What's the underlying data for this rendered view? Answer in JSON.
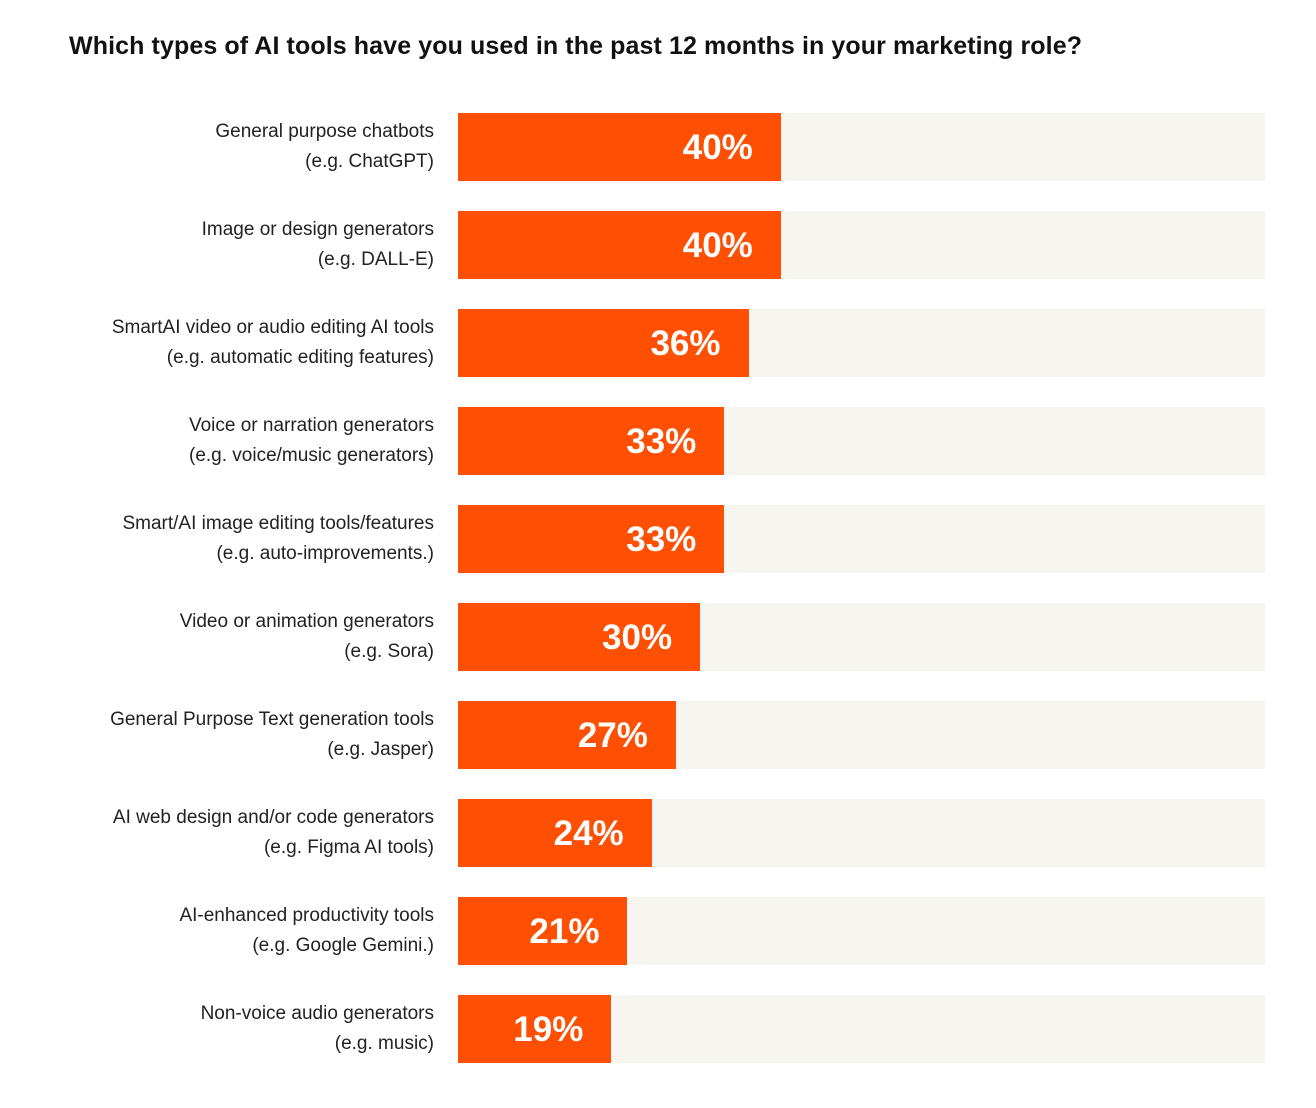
{
  "colors": {
    "bar": "#fe4f02",
    "track": "#f7f5ef",
    "value_text": "#ffffff",
    "label_text": "#222222",
    "title_text": "#111111"
  },
  "chart_data": {
    "type": "bar",
    "orientation": "horizontal",
    "title": "Which types of AI tools have you used in the past 12 months in your marketing role?",
    "xlabel": "",
    "ylabel": "",
    "xlim": [
      0,
      100
    ],
    "grid": false,
    "legend": null,
    "categories": [
      "General purpose chatbots (e.g. ChatGPT)",
      "Image or design generators (e.g. DALL-E)",
      "SmartAI video or audio editing AI tools (e.g. automatic editing features)",
      "Voice or narration generators (e.g. voice/music generators)",
      "Smart/AI image editing tools/features (e.g. auto-improvements.)",
      "Video or animation generators (e.g. Sora)",
      "General Purpose Text generation tools (e.g. Jasper)",
      "AI web design and/or code generators (e.g. Figma AI tools)",
      "AI-enhanced productivity tools (e.g. Google Gemini.)",
      "Non-voice audio generators (e.g. music)"
    ],
    "values": [
      40,
      40,
      36,
      33,
      33,
      30,
      27,
      24,
      21,
      19
    ],
    "unit": "%"
  },
  "rows": [
    {
      "line1": "General purpose chatbots",
      "line2": "(e.g. ChatGPT)",
      "value": 40,
      "label": "40%"
    },
    {
      "line1": "Image or design generators",
      "line2": "(e.g. DALL-E)",
      "value": 40,
      "label": "40%"
    },
    {
      "line1": "SmartAI video or audio editing AI tools",
      "line2": "(e.g. automatic editing features)",
      "value": 36,
      "label": "36%"
    },
    {
      "line1": "Voice or narration generators",
      "line2": "(e.g. voice/music generators)",
      "value": 33,
      "label": "33%"
    },
    {
      "line1": "Smart/AI image editing tools/features",
      "line2": "(e.g. auto-improvements.)",
      "value": 33,
      "label": "33%"
    },
    {
      "line1": "Video or animation generators",
      "line2": "(e.g. Sora)",
      "value": 30,
      "label": "30%"
    },
    {
      "line1": "General Purpose Text generation tools",
      "line2": "(e.g. Jasper)",
      "value": 27,
      "label": "27%"
    },
    {
      "line1": "AI web design and/or code generators",
      "line2": "(e.g. Figma AI tools)",
      "value": 24,
      "label": "24%"
    },
    {
      "line1": "AI-enhanced productivity tools",
      "line2": "(e.g. Google Gemini.)",
      "value": 21,
      "label": "21%"
    },
    {
      "line1": "Non-voice audio generators",
      "line2": "(e.g. music)",
      "value": 19,
      "label": "19%"
    }
  ]
}
